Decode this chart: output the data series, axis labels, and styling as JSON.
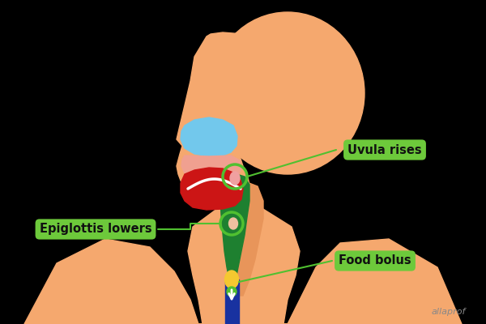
{
  "background_color": "#000000",
  "skin_color": "#F5A86E",
  "skin_dark": "#E8955A",
  "tongue_red": "#CC1515",
  "tongue_pink": "#E87878",
  "palate_blue": "#72C8EC",
  "throat_green": "#1E8030",
  "esophagus_blue": "#1832A0",
  "food_bolus_yellow": "#F5C830",
  "food_bolus_green": "#50C030",
  "label_bg": "#6DC93B",
  "label_text": "#111111",
  "arrow_color": "#50C030",
  "uvula_label": "Uvula rises",
  "epiglottis_label": "Epiglottis lowers",
  "food_bolus_label": "Food bolus",
  "watermark": "allaprof",
  "watermark_color": "#888888",
  "white": "#FFFFFF"
}
